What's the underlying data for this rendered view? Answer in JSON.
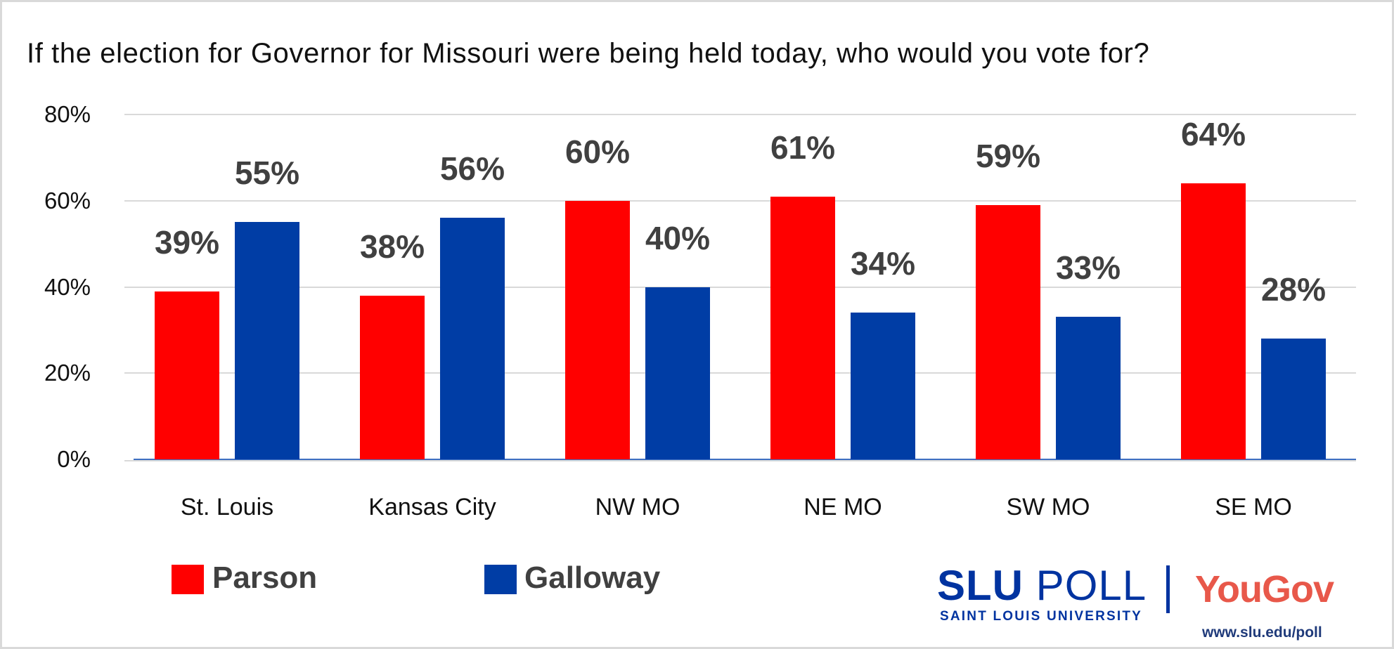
{
  "chart_data": {
    "type": "bar",
    "title": "If the election for Governor for Missouri were being held today, who would you vote for?",
    "categories": [
      "St. Louis",
      "Kansas City",
      "NW MO",
      "NE MO",
      "SW MO",
      "SE MO"
    ],
    "series": [
      {
        "name": "Parson",
        "color": "#ff0000",
        "values": [
          39,
          38,
          60,
          61,
          59,
          64
        ],
        "labels": [
          "39%",
          "38%",
          "60%",
          "61%",
          "59%",
          "64%"
        ]
      },
      {
        "name": "Galloway",
        "color": "#003da5",
        "values": [
          55,
          56,
          40,
          34,
          33,
          28
        ],
        "labels": [
          "55%",
          "56%",
          "40%",
          "34%",
          "33%",
          "28%"
        ]
      }
    ],
    "yticks": [
      "0%",
      "20%",
      "40%",
      "60%",
      "80%"
    ],
    "ylim": [
      0,
      80
    ],
    "grid": true,
    "legend": "bottom-left",
    "xlabel": "",
    "ylabel": ""
  },
  "branding": {
    "slu_bold": "SLU",
    "slu_poll": "POLL",
    "slu_sub": "SAINT LOUIS UNIVERSITY",
    "yougov": "YouGov",
    "url": "www.slu.edu/poll"
  }
}
